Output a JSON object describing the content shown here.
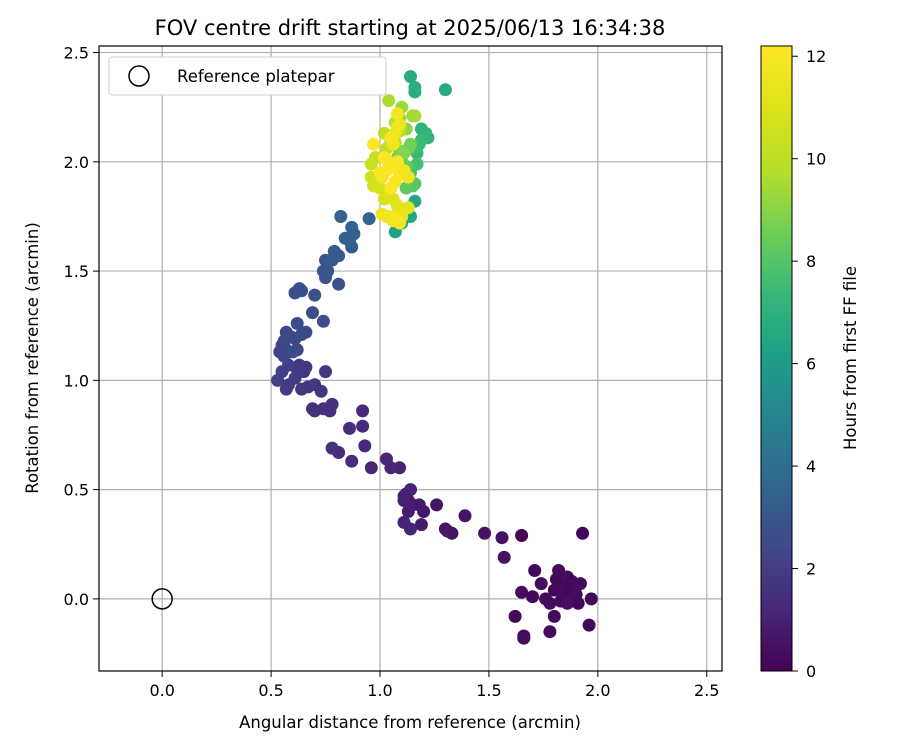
{
  "chart_data": {
    "type": "scatter",
    "title": "FOV centre drift starting at 2025/06/13 16:34:38",
    "xlabel": "Angular distance from reference (arcmin)",
    "ylabel": "Rotation from reference (arcmin)",
    "xlim": [
      -0.29,
      2.57
    ],
    "ylim": [
      -0.33,
      2.53
    ],
    "xticks": [
      "0.0",
      "0.5",
      "1.0",
      "1.5",
      "2.0",
      "2.5"
    ],
    "yticks": [
      "0.0",
      "0.5",
      "1.0",
      "1.5",
      "2.0",
      "2.5"
    ],
    "grid": true,
    "legend": {
      "placement": "top-left",
      "label": "Reference platepar"
    },
    "reference_point": {
      "x": 0.0,
      "y": 0.0
    },
    "colorbar": {
      "label": "Hours from first FF file",
      "range": [
        0,
        12.2
      ],
      "ticks": [
        "0",
        "2",
        "4",
        "6",
        "8",
        "10",
        "12"
      ],
      "colormap": "viridis"
    },
    "series": [
      {
        "points": [
          [
            1.65,
            0.29,
            0.1
          ],
          [
            1.93,
            0.3,
            0.2
          ],
          [
            1.71,
            0.13,
            0.2
          ],
          [
            1.74,
            0.07,
            0.3
          ],
          [
            1.81,
            0.09,
            0.2
          ],
          [
            1.82,
            0.13,
            0.3
          ],
          [
            1.84,
            0.07,
            0.2
          ],
          [
            1.86,
            0.1,
            0.3
          ],
          [
            1.88,
            0.08,
            0.2
          ],
          [
            1.92,
            0.07,
            0.3
          ],
          [
            1.8,
            0.04,
            0.2
          ],
          [
            1.84,
            0.03,
            0.3
          ],
          [
            1.87,
            0.04,
            0.2
          ],
          [
            1.9,
            0.02,
            0.3
          ],
          [
            1.97,
            0.0,
            0.2
          ],
          [
            1.65,
            0.03,
            0.3
          ],
          [
            1.7,
            0.01,
            0.2
          ],
          [
            1.76,
            0.0,
            0.3
          ],
          [
            1.83,
            -0.01,
            0.2
          ],
          [
            1.88,
            -0.01,
            0.3
          ],
          [
            1.91,
            -0.02,
            0.2
          ],
          [
            1.78,
            -0.02,
            0.3
          ],
          [
            1.62,
            -0.08,
            0.2
          ],
          [
            1.8,
            -0.08,
            0.3
          ],
          [
            1.96,
            -0.12,
            0.2
          ],
          [
            1.78,
            -0.15,
            0.3
          ],
          [
            1.66,
            -0.17,
            0.2
          ],
          [
            1.66,
            -0.18,
            0.3
          ],
          [
            1.86,
            -0.02,
            0.4
          ],
          [
            1.48,
            0.3,
            0.5
          ],
          [
            1.56,
            0.28,
            0.5
          ],
          [
            1.57,
            0.19,
            0.5
          ],
          [
            1.39,
            0.38,
            0.6
          ],
          [
            1.33,
            0.3,
            0.6
          ],
          [
            1.3,
            0.32,
            0.6
          ],
          [
            1.31,
            0.31,
            0.7
          ],
          [
            1.26,
            0.43,
            0.7
          ],
          [
            1.2,
            0.4,
            0.7
          ],
          [
            1.18,
            0.43,
            0.8
          ],
          [
            1.15,
            0.43,
            0.8
          ],
          [
            1.19,
            0.34,
            0.8
          ],
          [
            1.13,
            0.4,
            0.9
          ],
          [
            1.13,
            0.45,
            0.9
          ],
          [
            1.11,
            0.47,
            0.9
          ],
          [
            1.12,
            0.48,
            1.0
          ],
          [
            1.14,
            0.5,
            1.0
          ],
          [
            1.11,
            0.45,
            1.0
          ],
          [
            1.11,
            0.35,
            1.1
          ],
          [
            1.14,
            0.32,
            1.1
          ],
          [
            1.09,
            0.6,
            1.1
          ],
          [
            1.05,
            0.6,
            1.2
          ],
          [
            1.03,
            0.64,
            1.2
          ],
          [
            0.96,
            0.6,
            1.2
          ],
          [
            0.93,
            0.7,
            1.3
          ],
          [
            0.92,
            0.79,
            1.3
          ],
          [
            0.92,
            0.86,
            1.3
          ],
          [
            0.86,
            0.78,
            1.4
          ],
          [
            0.87,
            0.63,
            1.4
          ],
          [
            0.81,
            0.67,
            1.4
          ],
          [
            0.78,
            0.69,
            1.5
          ],
          [
            0.78,
            0.89,
            1.5
          ],
          [
            0.77,
            0.86,
            1.5
          ],
          [
            0.74,
            0.87,
            1.6
          ],
          [
            0.7,
            0.86,
            1.6
          ],
          [
            0.69,
            0.87,
            1.6
          ],
          [
            0.73,
            0.95,
            1.7
          ],
          [
            0.75,
            1.04,
            1.7
          ],
          [
            0.7,
            0.98,
            1.7
          ],
          [
            0.67,
            0.97,
            1.8
          ],
          [
            0.64,
            0.96,
            1.8
          ],
          [
            0.65,
            1.04,
            1.8
          ],
          [
            0.66,
            1.06,
            1.9
          ],
          [
            0.63,
            1.07,
            1.9
          ],
          [
            0.62,
            1.05,
            1.9
          ],
          [
            0.61,
            1.01,
            2.0
          ],
          [
            0.58,
            0.98,
            2.0
          ],
          [
            0.57,
            0.96,
            2.0
          ],
          [
            0.55,
            1.04,
            2.1
          ],
          [
            0.53,
            1.0,
            2.1
          ],
          [
            0.58,
            1.07,
            2.1
          ],
          [
            0.56,
            1.11,
            2.2
          ],
          [
            0.57,
            1.14,
            2.2
          ],
          [
            0.55,
            1.16,
            2.2
          ],
          [
            0.54,
            1.13,
            2.3
          ],
          [
            0.56,
            1.18,
            2.3
          ],
          [
            0.57,
            1.22,
            2.3
          ],
          [
            0.59,
            1.2,
            2.4
          ],
          [
            0.61,
            1.19,
            2.4
          ],
          [
            0.62,
            1.14,
            2.4
          ],
          [
            0.6,
            1.13,
            2.5
          ],
          [
            0.64,
            1.21,
            2.5
          ],
          [
            0.66,
            1.22,
            2.5
          ],
          [
            0.62,
            1.26,
            2.6
          ],
          [
            0.74,
            1.27,
            2.6
          ],
          [
            0.69,
            1.31,
            2.6
          ],
          [
            0.61,
            1.4,
            2.7
          ],
          [
            0.63,
            1.42,
            2.7
          ],
          [
            0.64,
            1.41,
            2.7
          ],
          [
            0.7,
            1.39,
            2.8
          ],
          [
            0.81,
            1.44,
            2.8
          ],
          [
            0.75,
            1.47,
            2.9
          ],
          [
            0.74,
            1.5,
            2.9
          ],
          [
            0.76,
            1.5,
            3.0
          ],
          [
            0.75,
            1.55,
            3.0
          ],
          [
            0.78,
            1.55,
            3.1
          ],
          [
            0.81,
            1.57,
            3.1
          ],
          [
            0.79,
            1.59,
            3.2
          ],
          [
            0.87,
            1.61,
            3.2
          ],
          [
            0.86,
            1.64,
            3.3
          ],
          [
            0.84,
            1.65,
            3.3
          ],
          [
            0.88,
            1.67,
            3.4
          ],
          [
            0.87,
            1.7,
            3.4
          ],
          [
            0.82,
            1.75,
            3.5
          ],
          [
            0.95,
            1.74,
            3.6
          ],
          [
            1.07,
            1.68,
            6.2
          ],
          [
            1.1,
            1.72,
            6.3
          ],
          [
            1.14,
            1.75,
            6.4
          ],
          [
            1.16,
            1.82,
            6.5
          ],
          [
            1.3,
            2.33,
            6.6
          ],
          [
            1.14,
            2.39,
            6.7
          ],
          [
            1.16,
            2.34,
            6.8
          ],
          [
            1.16,
            2.32,
            6.9
          ],
          [
            1.21,
            2.13,
            7.0
          ],
          [
            1.22,
            2.11,
            7.0
          ],
          [
            1.19,
            2.15,
            7.1
          ],
          [
            1.21,
            2.12,
            7.2
          ],
          [
            1.19,
            2.1,
            7.3
          ],
          [
            1.17,
            2.04,
            7.4
          ],
          [
            1.18,
            2.08,
            7.5
          ],
          [
            1.15,
            2.06,
            7.6
          ],
          [
            1.17,
            1.99,
            7.7
          ],
          [
            1.14,
            1.95,
            7.8
          ],
          [
            1.13,
            1.97,
            7.9
          ],
          [
            1.16,
            1.9,
            8.0
          ],
          [
            1.15,
            1.89,
            8.1
          ],
          [
            1.12,
            1.88,
            8.2
          ],
          [
            1.1,
            2.0,
            8.3
          ],
          [
            1.12,
            1.98,
            8.4
          ],
          [
            1.13,
            2.06,
            8.5
          ],
          [
            1.14,
            2.08,
            8.6
          ],
          [
            1.09,
            2.05,
            8.7
          ],
          [
            1.08,
            2.02,
            8.8
          ],
          [
            1.11,
            2.04,
            8.9
          ],
          [
            1.05,
            2.09,
            9.0
          ],
          [
            1.12,
            2.15,
            9.1
          ],
          [
            1.09,
            2.2,
            9.2
          ],
          [
            1.1,
            2.25,
            9.3
          ],
          [
            1.15,
            2.21,
            9.4
          ],
          [
            1.16,
            2.21,
            9.5
          ],
          [
            1.04,
            2.28,
            9.6
          ],
          [
            1.07,
            2.18,
            9.7
          ],
          [
            1.09,
            2.14,
            9.8
          ],
          [
            1.05,
            2.11,
            9.9
          ],
          [
            1.02,
            2.13,
            10.0
          ],
          [
            1.03,
            2.06,
            10.1
          ],
          [
            1.07,
            2.09,
            10.2
          ],
          [
            0.98,
            2.02,
            10.3
          ],
          [
            0.96,
            1.99,
            10.4
          ],
          [
            0.96,
            1.93,
            10.5
          ],
          [
            0.97,
            1.89,
            10.6
          ],
          [
            1.0,
            1.88,
            10.7
          ],
          [
            1.02,
            1.83,
            10.8
          ],
          [
            1.04,
            1.86,
            10.9
          ],
          [
            1.06,
            1.83,
            11.0
          ],
          [
            1.08,
            1.8,
            11.1
          ],
          [
            1.13,
            1.79,
            11.2
          ],
          [
            1.08,
            1.76,
            11.3
          ],
          [
            1.1,
            1.75,
            11.4
          ],
          [
            1.03,
            1.75,
            11.5
          ],
          [
            1.01,
            1.76,
            11.6
          ],
          [
            1.06,
            1.73,
            11.7
          ],
          [
            1.04,
            1.75,
            11.7
          ],
          [
            1.09,
            1.72,
            11.8
          ],
          [
            1.07,
            1.74,
            11.9
          ],
          [
            1.08,
            2.16,
            11.4
          ],
          [
            1.07,
            2.13,
            11.5
          ],
          [
            1.06,
            2.08,
            11.6
          ],
          [
            1.09,
            2.17,
            11.7
          ],
          [
            1.08,
            2.22,
            11.8
          ],
          [
            1.05,
            2.11,
            11.9
          ],
          [
            1.03,
            2.01,
            12.0
          ],
          [
            1.06,
            1.99,
            12.1
          ],
          [
            1.03,
            1.96,
            12.2
          ],
          [
            1.01,
            1.93,
            12.0
          ],
          [
            1.07,
            1.91,
            11.9
          ],
          [
            1.09,
            1.94,
            12.1
          ],
          [
            1.05,
            1.88,
            12.2
          ],
          [
            1.0,
            1.95,
            12.0
          ],
          [
            1.08,
            2.0,
            12.1
          ],
          [
            0.97,
            2.08,
            12.2
          ],
          [
            1.11,
            1.96,
            11.8
          ],
          [
            1.13,
            1.93,
            11.6
          ],
          [
            1.04,
            1.97,
            12.2
          ],
          [
            1.02,
            2.02,
            12.1
          ]
        ]
      }
    ]
  }
}
